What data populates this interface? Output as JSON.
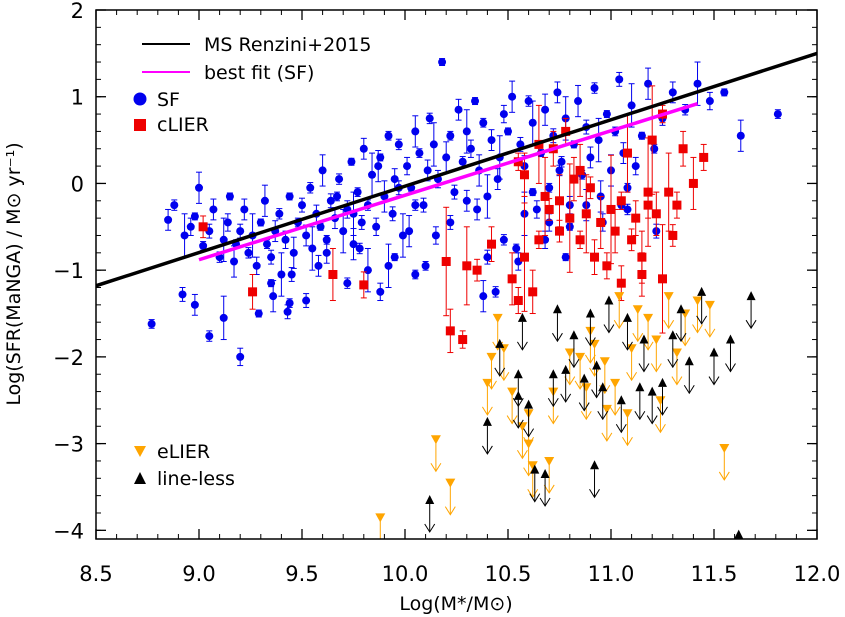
{
  "chart_data": {
    "type": "scatter",
    "xlabel": "Log(M*/M⊙)",
    "ylabel": "Log(SFR(MaNGA) / M⊙ yr⁻¹)",
    "xlim": [
      8.5,
      12.0
    ],
    "ylim": [
      -4.1,
      2.0
    ],
    "x_ticks": [
      "8.5",
      "9.0",
      "9.5",
      "10.0",
      "10.5",
      "11.0",
      "11.5",
      "12.0"
    ],
    "y_ticks": [
      "2",
      "1",
      "0",
      "−1",
      "−2",
      "−3",
      "−4"
    ],
    "grid": false,
    "legend_position": "top-left",
    "lines": [
      {
        "name": "MS Renzini+2015",
        "color": "#000000",
        "x": [
          8.5,
          12.0
        ],
        "y": [
          -1.18,
          1.5
        ]
      },
      {
        "name": "best fit (SF)",
        "color": "#ff00ff",
        "x": [
          9.0,
          11.42
        ],
        "y": [
          -0.88,
          0.92
        ]
      }
    ],
    "series": [
      {
        "name": "SF",
        "marker": "circle",
        "color": "#0000ee",
        "points": [
          [
            8.77,
            -1.62
          ],
          [
            8.92,
            -1.28
          ],
          [
            8.98,
            -1.4
          ],
          [
            9.05,
            -1.76
          ],
          [
            9.12,
            -1.55
          ],
          [
            9.2,
            -2.0
          ],
          [
            9.29,
            -1.5
          ],
          [
            9.36,
            -1.3
          ],
          [
            9.44,
            -1.38
          ],
          [
            9.43,
            -1.48
          ],
          [
            8.85,
            -0.42
          ],
          [
            8.88,
            -0.25
          ],
          [
            8.93,
            -0.6
          ],
          [
            8.96,
            -0.5
          ],
          [
            8.98,
            -0.38
          ],
          [
            9.0,
            -0.05
          ],
          [
            9.02,
            -0.72
          ],
          [
            9.05,
            -0.55
          ],
          [
            9.07,
            -0.3
          ],
          [
            9.1,
            -0.85
          ],
          [
            9.12,
            -0.65
          ],
          [
            9.14,
            -0.45
          ],
          [
            9.15,
            -0.15
          ],
          [
            9.17,
            -0.9
          ],
          [
            9.18,
            -0.7
          ],
          [
            9.2,
            -0.55
          ],
          [
            9.22,
            -0.3
          ],
          [
            9.24,
            -0.8
          ],
          [
            9.26,
            -0.6
          ],
          [
            9.28,
            -0.95
          ],
          [
            9.3,
            -0.45
          ],
          [
            9.32,
            -0.2
          ],
          [
            9.33,
            -0.7
          ],
          [
            9.35,
            -0.85
          ],
          [
            9.37,
            -0.55
          ],
          [
            9.39,
            -0.35
          ],
          [
            9.4,
            -1.05
          ],
          [
            9.42,
            -0.65
          ],
          [
            9.44,
            -0.15
          ],
          [
            9.46,
            -0.8
          ],
          [
            9.48,
            -0.45
          ],
          [
            9.5,
            -0.25
          ],
          [
            9.52,
            -0.6
          ],
          [
            9.54,
            -0.05
          ],
          [
            9.55,
            -0.75
          ],
          [
            9.57,
            -0.35
          ],
          [
            9.59,
            -0.5
          ],
          [
            9.6,
            0.15
          ],
          [
            9.62,
            -0.65
          ],
          [
            9.64,
            -0.2
          ],
          [
            9.66,
            -0.4
          ],
          [
            9.68,
            0.05
          ],
          [
            9.7,
            -0.55
          ],
          [
            9.72,
            -0.3
          ],
          [
            9.74,
            0.25
          ],
          [
            9.75,
            -0.7
          ],
          [
            9.77,
            -0.1
          ],
          [
            9.79,
            -0.45
          ],
          [
            9.8,
            0.4
          ],
          [
            9.82,
            -0.25
          ],
          [
            9.84,
            0.1
          ],
          [
            9.86,
            -0.5
          ],
          [
            9.88,
            0.3
          ],
          [
            9.9,
            -0.15
          ],
          [
            9.92,
            0.55
          ],
          [
            9.94,
            -0.35
          ],
          [
            9.95,
            0.05
          ],
          [
            9.97,
            0.45
          ],
          [
            9.99,
            -0.6
          ],
          [
            10.01,
            0.2
          ],
          [
            10.03,
            -0.05
          ],
          [
            10.05,
            0.6
          ],
          [
            10.07,
            0.35
          ],
          [
            10.09,
            -0.25
          ],
          [
            10.11,
            0.15
          ],
          [
            10.12,
            0.75
          ],
          [
            10.14,
            0.45
          ],
          [
            10.16,
            0.05
          ],
          [
            10.18,
            1.4
          ],
          [
            10.2,
            0.3
          ],
          [
            10.22,
            0.55
          ],
          [
            10.24,
            -0.1
          ],
          [
            10.26,
            0.85
          ],
          [
            10.28,
            0.25
          ],
          [
            10.3,
            0.6
          ],
          [
            10.32,
            0.4
          ],
          [
            10.34,
            0.95
          ],
          [
            10.36,
            0.15
          ],
          [
            10.38,
            0.7
          ],
          [
            10.4,
            -0.85
          ],
          [
            10.42,
            0.5
          ],
          [
            10.44,
            -1.25
          ],
          [
            10.46,
            0.3
          ],
          [
            10.48,
            0.8
          ],
          [
            10.5,
            0.6
          ],
          [
            10.52,
            1.0
          ],
          [
            10.54,
            -0.75
          ],
          [
            10.56,
            0.45
          ],
          [
            10.58,
            0.2
          ],
          [
            10.6,
            0.95
          ],
          [
            10.62,
            0.7
          ],
          [
            10.64,
            -0.3
          ],
          [
            10.66,
            0.35
          ],
          [
            10.68,
            0.85
          ],
          [
            10.7,
            -0.05
          ],
          [
            10.72,
            0.55
          ],
          [
            10.74,
            1.05
          ],
          [
            10.76,
            0.25
          ],
          [
            10.78,
            0.75
          ],
          [
            10.8,
            -0.25
          ],
          [
            10.82,
            0.45
          ],
          [
            10.84,
            0.95
          ],
          [
            10.86,
            0.1
          ],
          [
            10.88,
            0.65
          ],
          [
            10.9,
            0.3
          ],
          [
            10.92,
            1.1
          ],
          [
            10.94,
            0.5
          ],
          [
            10.96,
            -0.45
          ],
          [
            10.98,
            0.8
          ],
          [
            11.0,
            0.15
          ],
          [
            11.02,
            0.6
          ],
          [
            11.04,
            1.2
          ],
          [
            11.06,
            0.35
          ],
          [
            11.08,
            -0.3
          ],
          [
            11.1,
            0.9
          ],
          [
            11.12,
            0.2
          ],
          [
            11.15,
            0.55
          ],
          [
            11.18,
            1.15
          ],
          [
            11.21,
            0.4
          ],
          [
            11.25,
            0.75
          ],
          [
            11.3,
            1.05
          ],
          [
            11.36,
            0.85
          ],
          [
            11.42,
            1.15
          ],
          [
            11.48,
            0.95
          ],
          [
            11.55,
            1.05
          ],
          [
            11.63,
            0.55
          ],
          [
            11.81,
            0.8
          ],
          [
            9.45,
            -1.05
          ],
          [
            9.58,
            -0.95
          ],
          [
            9.72,
            -1.15
          ],
          [
            9.82,
            -1.0
          ],
          [
            9.88,
            -1.25
          ],
          [
            9.95,
            -0.85
          ],
          [
            10.02,
            -0.55
          ],
          [
            10.1,
            -0.95
          ],
          [
            10.22,
            -0.45
          ],
          [
            10.35,
            -0.3
          ],
          [
            10.48,
            -0.65
          ],
          [
            10.58,
            -0.35
          ],
          [
            10.68,
            -0.65
          ],
          [
            10.8,
            -0.5
          ],
          [
            10.95,
            -0.15
          ],
          [
            11.05,
            -0.25
          ],
          [
            9.52,
            -1.35
          ],
          [
            9.62,
            -0.8
          ],
          [
            9.78,
            -0.75
          ],
          [
            9.92,
            -0.95
          ],
          [
            10.55,
            -0.9
          ],
          [
            10.78,
            -0.85
          ],
          [
            10.88,
            -0.25
          ],
          [
            11.08,
            -0.05
          ],
          [
            11.22,
            -0.55
          ],
          [
            10.3,
            -0.2
          ],
          [
            10.05,
            -0.25
          ],
          [
            9.75,
            -0.35
          ],
          [
            10.15,
            -0.6
          ],
          [
            10.62,
            -0.1
          ],
          [
            9.87,
            0.2
          ],
          [
            9.67,
            -0.15
          ],
          [
            9.97,
            -0.05
          ],
          [
            10.45,
            0.05
          ],
          [
            10.75,
            0.15
          ],
          [
            10.4,
            -0.15
          ],
          [
            10.7,
            -0.45
          ],
          [
            9.35,
            -1.15
          ],
          [
            10.38,
            -1.3
          ],
          [
            10.05,
            -1.05
          ]
        ]
      },
      {
        "name": "cLIER",
        "marker": "square",
        "color": "#ee0000",
        "points": [
          [
            9.02,
            -0.5
          ],
          [
            9.26,
            -1.25
          ],
          [
            9.65,
            -1.05
          ],
          [
            9.8,
            -1.17
          ],
          [
            10.2,
            -0.9
          ],
          [
            10.22,
            -1.7
          ],
          [
            10.28,
            -1.8
          ],
          [
            10.3,
            -0.95
          ],
          [
            10.35,
            -1.0
          ],
          [
            10.42,
            -0.7
          ],
          [
            10.52,
            -1.1
          ],
          [
            10.55,
            -1.35
          ],
          [
            10.58,
            -0.85
          ],
          [
            10.62,
            -1.25
          ],
          [
            10.65,
            -0.65
          ],
          [
            10.68,
            -0.15
          ],
          [
            10.7,
            -0.3
          ],
          [
            10.72,
            0.4
          ],
          [
            10.75,
            -0.2
          ],
          [
            10.78,
            0.6
          ],
          [
            10.8,
            -0.4
          ],
          [
            10.82,
            0.05
          ],
          [
            10.85,
            -0.65
          ],
          [
            10.88,
            -0.35
          ],
          [
            10.9,
            -0.05
          ],
          [
            10.92,
            -0.85
          ],
          [
            10.95,
            -0.45
          ],
          [
            10.98,
            -0.95
          ],
          [
            11.0,
            -0.3
          ],
          [
            11.02,
            -0.55
          ],
          [
            11.05,
            -0.2
          ],
          [
            11.08,
            0.35
          ],
          [
            11.1,
            -0.65
          ],
          [
            11.12,
            -0.4
          ],
          [
            11.15,
            -0.85
          ],
          [
            11.18,
            -0.25
          ],
          [
            11.2,
            0.5
          ],
          [
            11.22,
            -0.35
          ],
          [
            11.25,
            0.8
          ],
          [
            11.28,
            -0.1
          ],
          [
            11.3,
            -0.6
          ],
          [
            11.35,
            0.4
          ],
          [
            11.4,
            0.0
          ],
          [
            11.45,
            0.3
          ],
          [
            11.25,
            -1.1
          ],
          [
            11.15,
            -1.05
          ],
          [
            10.55,
            0.25
          ],
          [
            10.65,
            0.45
          ],
          [
            10.75,
            -0.55
          ],
          [
            11.05,
            -1.15
          ],
          [
            10.85,
            0.15
          ],
          [
            11.32,
            -0.25
          ],
          [
            11.18,
            -0.1
          ],
          [
            10.58,
            0.1
          ]
        ]
      },
      {
        "name": "eLIER",
        "marker": "triangle-down",
        "color": "#ffa500",
        "points": [
          [
            9.88,
            -3.85
          ],
          [
            10.15,
            -2.95
          ],
          [
            10.22,
            -3.45
          ],
          [
            10.4,
            -2.3
          ],
          [
            10.45,
            -1.55
          ],
          [
            10.48,
            -1.9
          ],
          [
            10.52,
            -2.4
          ],
          [
            10.57,
            -2.8
          ],
          [
            10.6,
            -3.0
          ],
          [
            10.62,
            -3.25
          ],
          [
            10.7,
            -3.2
          ],
          [
            10.72,
            -2.4
          ],
          [
            10.8,
            -1.95
          ],
          [
            10.85,
            -2.0
          ],
          [
            10.88,
            -2.35
          ],
          [
            10.92,
            -1.85
          ],
          [
            10.98,
            -2.6
          ],
          [
            11.02,
            -2.3
          ],
          [
            11.08,
            -2.65
          ],
          [
            11.1,
            -1.9
          ],
          [
            11.13,
            -1.45
          ],
          [
            11.18,
            -1.55
          ],
          [
            11.22,
            -1.8
          ],
          [
            11.24,
            -2.5
          ],
          [
            11.28,
            -1.3
          ],
          [
            11.32,
            -1.95
          ],
          [
            11.42,
            -1.35
          ],
          [
            11.48,
            -1.4
          ],
          [
            11.55,
            -3.05
          ],
          [
            11.04,
            -1.3
          ],
          [
            10.97,
            -2.05
          ],
          [
            10.6,
            -2.65
          ],
          [
            10.42,
            -2.0
          ],
          [
            11.36,
            -1.5
          ],
          [
            10.9,
            -1.7
          ]
        ]
      },
      {
        "name": "line-less",
        "marker": "triangle-up",
        "color": "#000000",
        "points": [
          [
            10.12,
            -3.65
          ],
          [
            10.4,
            -2.75
          ],
          [
            10.46,
            -1.85
          ],
          [
            10.55,
            -2.2
          ],
          [
            10.57,
            -1.55
          ],
          [
            10.6,
            -2.55
          ],
          [
            10.63,
            -3.3
          ],
          [
            10.68,
            -3.35
          ],
          [
            10.72,
            -2.2
          ],
          [
            10.74,
            -1.45
          ],
          [
            10.78,
            -2.15
          ],
          [
            10.82,
            -1.75
          ],
          [
            10.87,
            -2.25
          ],
          [
            10.9,
            -1.5
          ],
          [
            10.93,
            -2.1
          ],
          [
            10.96,
            -2.35
          ],
          [
            10.99,
            -1.35
          ],
          [
            11.05,
            -2.5
          ],
          [
            11.08,
            -1.55
          ],
          [
            11.14,
            -2.35
          ],
          [
            11.16,
            -1.8
          ],
          [
            11.2,
            -2.4
          ],
          [
            11.25,
            -2.3
          ],
          [
            11.3,
            -1.75
          ],
          [
            11.34,
            -1.45
          ],
          [
            11.38,
            -2.05
          ],
          [
            11.44,
            -1.25
          ],
          [
            11.5,
            -1.95
          ],
          [
            11.58,
            -1.8
          ],
          [
            11.62,
            -4.05
          ],
          [
            11.68,
            -1.3
          ],
          [
            10.92,
            -3.25
          ],
          [
            10.55,
            -2.45
          ]
        ]
      }
    ]
  }
}
